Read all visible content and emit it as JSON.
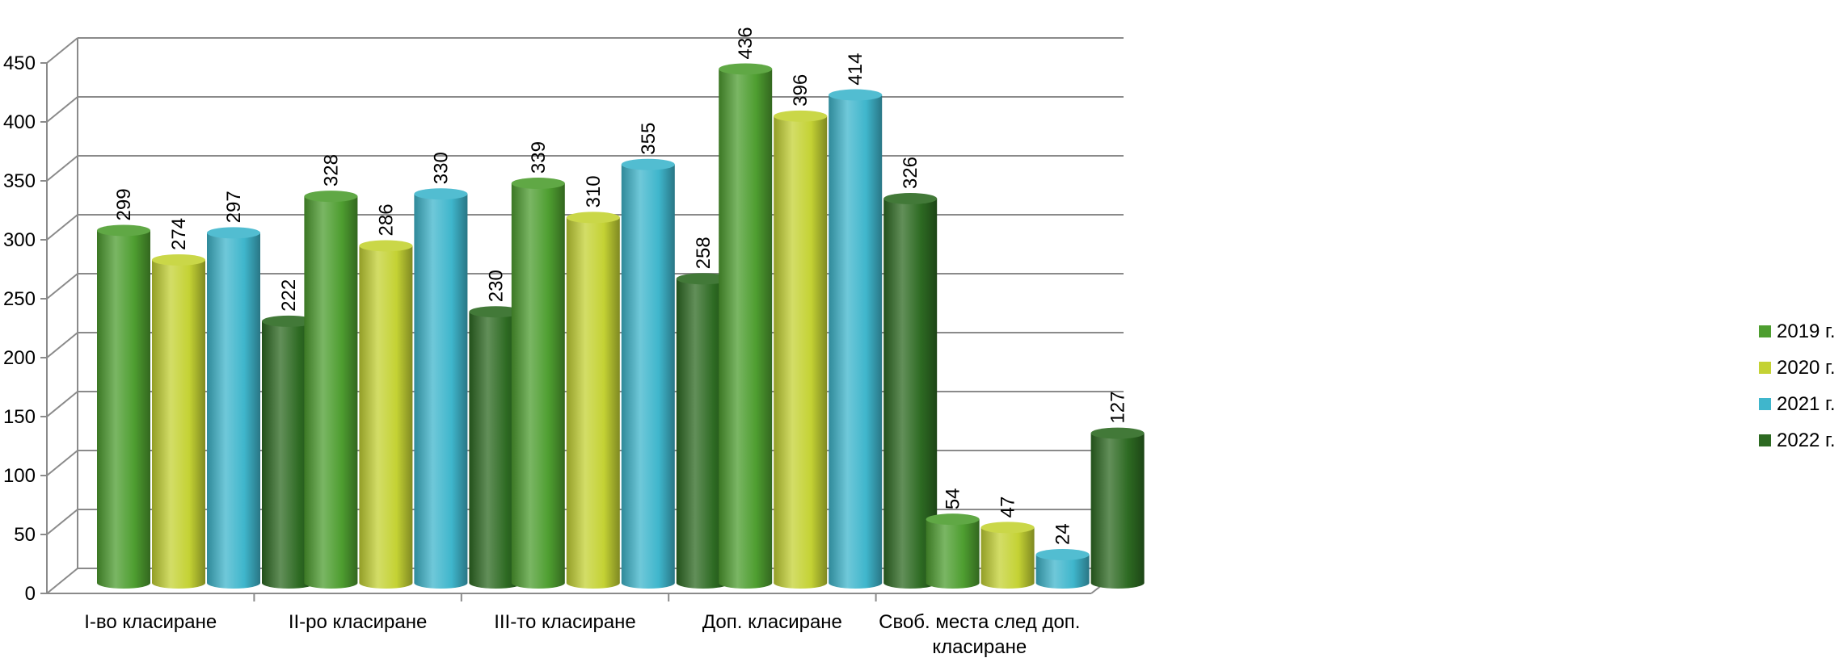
{
  "chart_data": {
    "type": "bar",
    "style": "3d-cylinder",
    "categories": [
      "I-во класиране",
      "II-ро класиране",
      "III-то класиране",
      "Доп. класиране",
      "Своб. места след доп. класиране"
    ],
    "series": [
      {
        "name": "2019 г.",
        "color": "#4e9e30",
        "values": [
          299,
          328,
          339,
          436,
          54
        ]
      },
      {
        "name": "2020 г.",
        "color": "#c4d234",
        "values": [
          274,
          286,
          310,
          396,
          47
        ]
      },
      {
        "name": "2021 г.",
        "color": "#3fb6cc",
        "values": [
          297,
          330,
          355,
          414,
          24
        ]
      },
      {
        "name": "2022 г.",
        "color": "#2d6a22",
        "values": [
          222,
          230,
          258,
          326,
          127
        ]
      }
    ],
    "ylim": [
      0,
      450
    ],
    "yticks": [
      "0",
      "50",
      "100",
      "150",
      "200",
      "250",
      "300",
      "350",
      "400",
      "450"
    ],
    "grid": true,
    "legend": "right",
    "title": "",
    "xlabel": "",
    "ylabel": ""
  }
}
